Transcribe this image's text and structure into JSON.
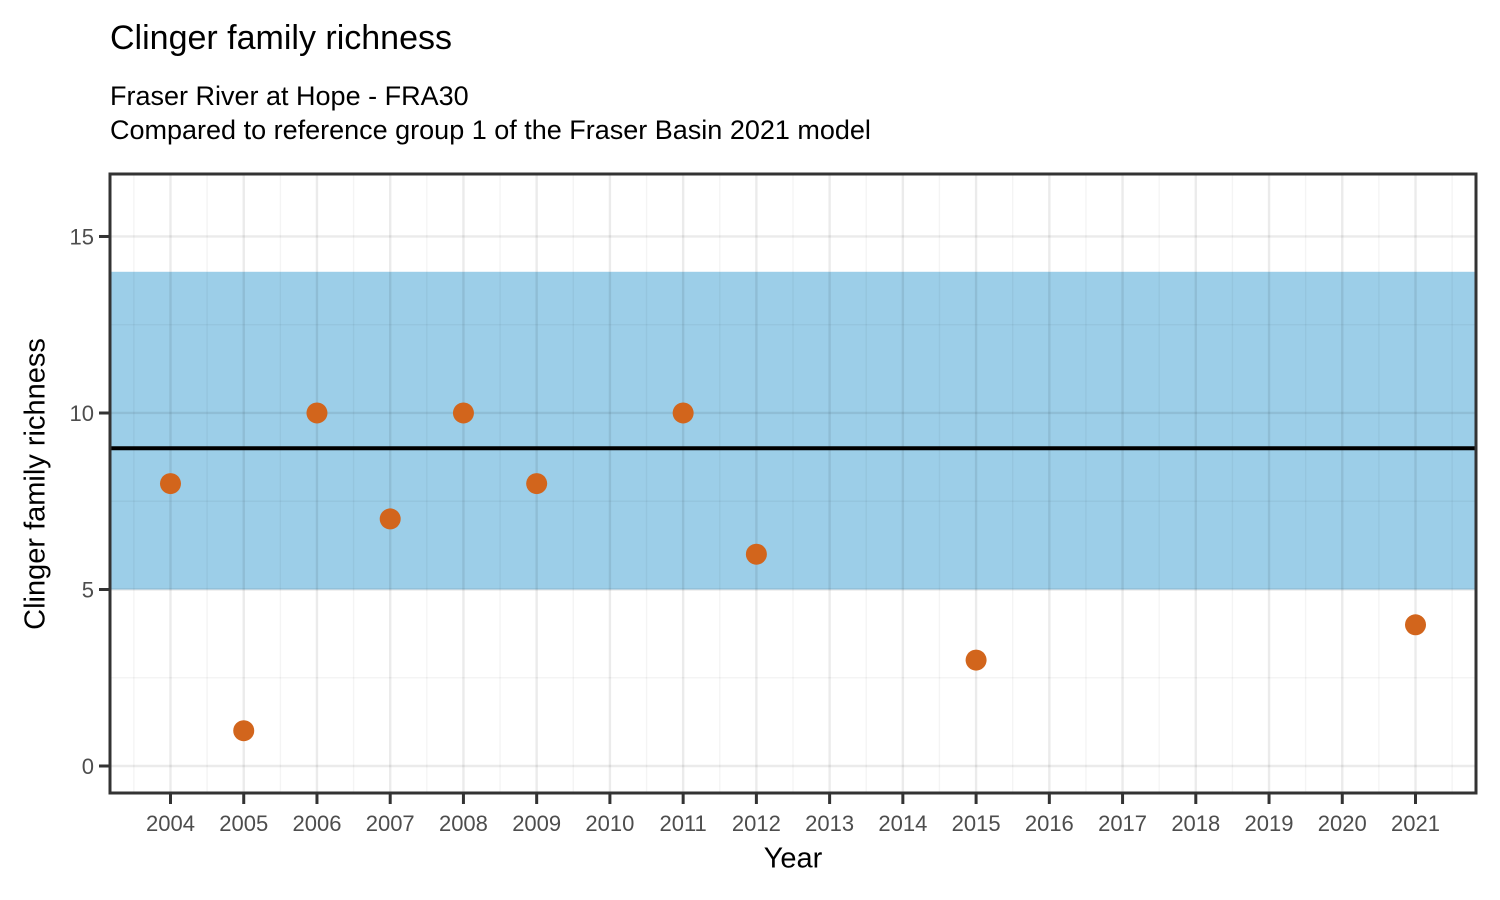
{
  "figure": {
    "title": "Clinger family richness",
    "subtitle_line1": "Fraser River at Hope - FRA30",
    "subtitle_line2": "Compared to reference group 1 of the Fraser Basin 2021 model"
  },
  "chart_data": {
    "type": "scatter",
    "title": "Clinger family richness",
    "subtitle": [
      "Fraser River at Hope - FRA30",
      "Compared to reference group 1 of the Fraser Basin 2021 model"
    ],
    "xlabel": "Year",
    "ylabel": "Clinger family richness",
    "x_ticks": [
      2004,
      2005,
      2006,
      2007,
      2008,
      2009,
      2010,
      2011,
      2012,
      2013,
      2014,
      2015,
      2016,
      2017,
      2018,
      2019,
      2020,
      2021
    ],
    "y_ticks": [
      0,
      5,
      10,
      15
    ],
    "y_minor_ticks": [
      2.5,
      7.5,
      12.5
    ],
    "xlim": [
      2003.174,
      2021.826
    ],
    "ylim": [
      -0.765,
      16.77
    ],
    "grid": {
      "major": true,
      "minor": true,
      "legend": "none"
    },
    "points": [
      {
        "x": 2004,
        "y": 8
      },
      {
        "x": 2005,
        "y": 1
      },
      {
        "x": 2006,
        "y": 10
      },
      {
        "x": 2007,
        "y": 7
      },
      {
        "x": 2008,
        "y": 10
      },
      {
        "x": 2009,
        "y": 8
      },
      {
        "x": 2011,
        "y": 10
      },
      {
        "x": 2012,
        "y": 6
      },
      {
        "x": 2015,
        "y": 3
      },
      {
        "x": 2021,
        "y": 4
      }
    ],
    "reference_band": {
      "low": 5,
      "high": 14,
      "color": "#9CCEE8"
    },
    "reference_line": {
      "value": 9,
      "color": "#000000"
    },
    "colors": {
      "point": "#D2651C",
      "panel_border": "#333333",
      "tick_mark": "#333333",
      "tick_label": "#4D4D4D",
      "grid_major": "rgba(0,0,0,0.08)",
      "grid_minor": "rgba(0,0,0,0.045)",
      "background": "#FFFFFF"
    }
  }
}
